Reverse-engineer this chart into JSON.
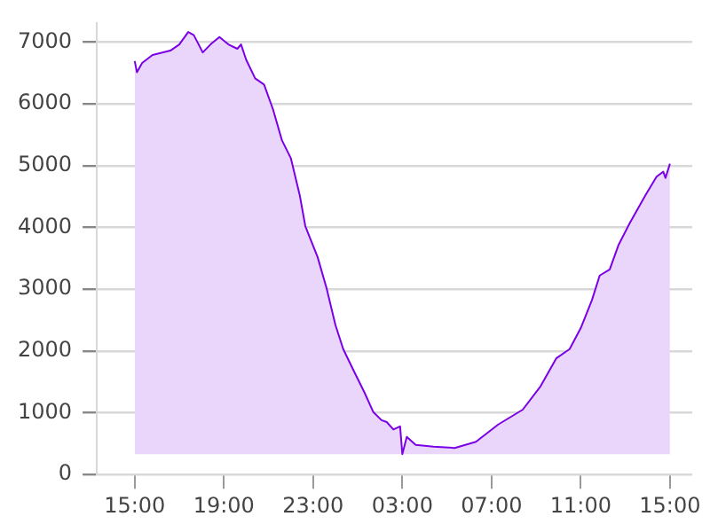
{
  "chart_data": {
    "type": "area",
    "x": [
      "2000-01-01T15:00",
      "2000-01-01T15:06",
      "2000-01-01T15:20",
      "2000-01-01T15:48",
      "2000-01-01T16:36",
      "2000-01-01T17:00",
      "2000-01-01T17:24",
      "2000-01-01T17:39",
      "2000-01-01T18:03",
      "2000-01-01T18:24",
      "2000-01-01T18:48",
      "2000-01-01T19:12",
      "2000-01-01T19:36",
      "2000-01-01T19:46",
      "2000-01-01T20:00",
      "2000-01-01T20:24",
      "2000-01-01T20:48",
      "2000-01-01T21:12",
      "2000-01-01T21:36",
      "2000-01-01T22:00",
      "2000-01-01T22:24",
      "2000-01-01T22:39",
      "2000-01-01T23:12",
      "2000-01-01T23:36",
      "2000-01-02T00:00",
      "2000-01-02T00:21",
      "2000-01-02T00:54",
      "2000-01-02T01:18",
      "2000-01-02T01:42",
      "2000-01-02T02:04",
      "2000-01-02T02:18",
      "2000-01-02T02:36",
      "2000-01-02T02:54",
      "2000-01-02T03:00",
      "2000-01-02T03:12",
      "2000-01-02T03:36",
      "2000-01-02T04:24",
      "2000-01-02T05:21",
      "2000-01-02T06:18",
      "2000-01-02T07:18",
      "2000-01-02T08:24",
      "2000-01-02T09:12",
      "2000-01-02T09:54",
      "2000-01-02T10:30",
      "2000-01-02T11:00",
      "2000-01-02T11:30",
      "2000-01-02T11:51",
      "2000-01-02T12:18",
      "2000-01-02T12:42",
      "2000-01-02T13:12",
      "2000-01-02T13:54",
      "2000-01-02T14:24",
      "2000-01-02T14:42",
      "2000-01-02T14:48",
      "2000-01-02T15:00"
    ],
    "series": [
      {
        "color": "#7a00e6",
        "values": [
          6690,
          6510,
          6660,
          6790,
          6860,
          6960,
          7160,
          7110,
          6830,
          6960,
          7080,
          6960,
          6890,
          6960,
          6710,
          6410,
          6310,
          5910,
          5410,
          5120,
          4520,
          4020,
          3520,
          3020,
          2420,
          2030,
          1620,
          1330,
          1010,
          880,
          850,
          730,
          780,
          330,
          610,
          480,
          450,
          430,
          530,
          810,
          1050,
          1430,
          1880,
          2030,
          2370,
          2820,
          3220,
          3320,
          3720,
          4070,
          4520,
          4820,
          4900,
          4800,
          5030
        ]
      }
    ],
    "xlim": [
      "2000-01-01T13:18",
      "2000-01-02T16:00"
    ],
    "xticks": [
      {
        "value": "2000-01-01T15:00",
        "label": "15:00"
      },
      {
        "value": "2000-01-01T19:00",
        "label": "19:00"
      },
      {
        "value": "2000-01-01T23:00",
        "label": "23:00"
      },
      {
        "value": "2000-01-02T03:00",
        "label": "03:00"
      },
      {
        "value": "2000-01-02T07:00",
        "label": "07:00"
      },
      {
        "value": "2000-01-02T11:00",
        "label": "11:00"
      },
      {
        "value": "2000-01-02T15:00",
        "label": "15:00"
      }
    ],
    "ylim": [
      0,
      7300
    ],
    "yticks": [
      0,
      1000,
      2000,
      3000,
      4000,
      5000,
      6000,
      7000
    ],
    "grid": "y",
    "legend": false
  }
}
